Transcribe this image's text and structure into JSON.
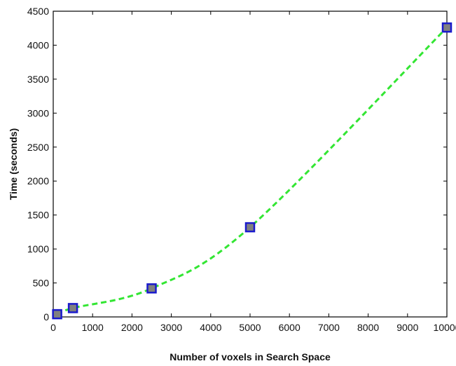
{
  "chart_data": {
    "type": "line",
    "title": "",
    "xlabel": "Number of voxels in Search Space",
    "ylabel": "Time (seconds)",
    "xlim": [
      0,
      10000
    ],
    "ylim": [
      0,
      4500
    ],
    "xticks": [
      0,
      1000,
      2000,
      3000,
      4000,
      5000,
      6000,
      7000,
      8000,
      9000,
      10000
    ],
    "yticks": [
      0,
      500,
      1000,
      1500,
      2000,
      2500,
      3000,
      3500,
      4000,
      4500
    ],
    "grid": false,
    "legend": "none",
    "series": [
      {
        "x": [
          100,
          500,
          2500,
          5000,
          10000
        ],
        "y": [
          40,
          130,
          420,
          1320,
          4260
        ],
        "line_color": "#33e633",
        "line_style": "dashed",
        "marker": "square",
        "marker_fill": "#808080",
        "marker_edge": "#1a1acc"
      }
    ]
  }
}
